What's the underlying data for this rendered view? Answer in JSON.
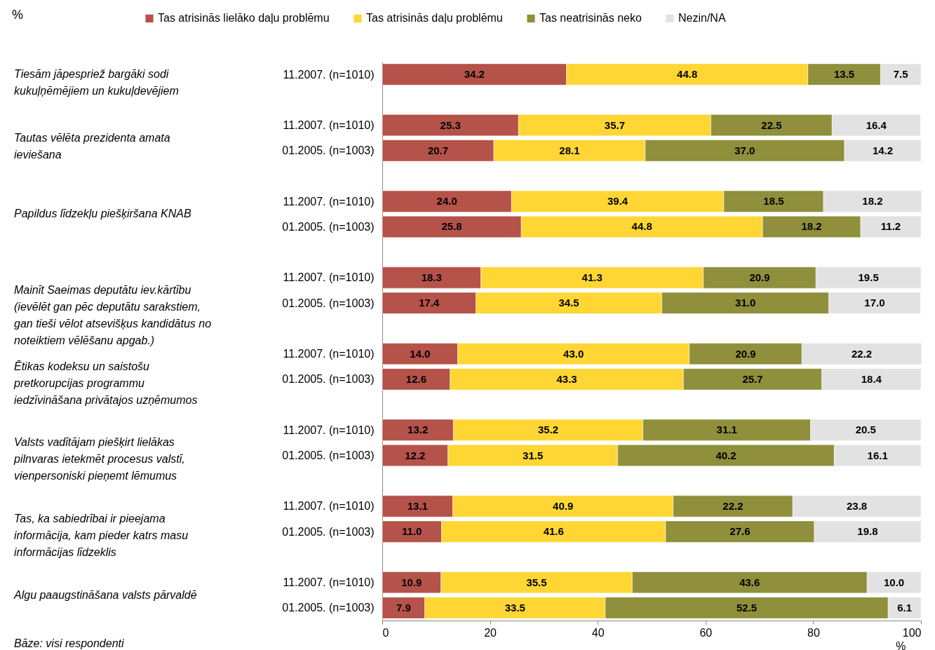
{
  "chart_data": {
    "type": "bar",
    "orientation": "horizontal",
    "stacked": true,
    "xlabel": "%",
    "categories": [
      "11.2007. (n=1010)",
      null,
      "11.2007. (n=1010)",
      "01.2005. (n=1003)",
      null,
      "11.2007. (n=1010)",
      "01.2005. (n=1003)",
      null,
      "11.2007. (n=1010)",
      "01.2005. (n=1003)",
      null,
      "11.2007. (n=1010)",
      "01.2005. (n=1003)",
      null,
      "11.2007. (n=1010)",
      "01.2005. (n=1003)",
      null,
      "11.2007. (n=1010)",
      "01.2005. (n=1003)",
      null,
      "11.2007. (n=1010)",
      "01.2005. (n=1003)"
    ],
    "series": [
      {
        "name": "Tas atrisinās lielāko daļu problēmu",
        "color": "#b5524a",
        "values": [
          34.2,
          null,
          25.3,
          20.7,
          null,
          24.0,
          25.8,
          null,
          18.3,
          17.4,
          null,
          14.0,
          12.6,
          null,
          13.2,
          12.2,
          null,
          13.1,
          11.0,
          null,
          10.9,
          7.9
        ],
        "value_labels": [
          "34.2",
          null,
          "25.3",
          "20.7",
          null,
          "24.0",
          "25.8",
          null,
          "18.3",
          "17.4",
          null,
          "14.0",
          "12.6",
          null,
          "13.2",
          "12.2",
          null,
          "13.1",
          "11.0",
          null,
          "10.9",
          "7.9"
        ]
      },
      {
        "name": "Tas atrisinās daļu problēmu",
        "color": "#ffd633",
        "values": [
          44.8,
          null,
          35.7,
          28.1,
          null,
          39.4,
          44.8,
          null,
          41.3,
          34.5,
          null,
          43.0,
          43.3,
          null,
          35.2,
          31.5,
          null,
          40.9,
          41.6,
          null,
          35.5,
          33.5
        ],
        "value_labels": [
          "44.8",
          null,
          "35.7",
          "28.1",
          null,
          "39.4",
          "44.8",
          null,
          "41.3",
          "34.5",
          null,
          "43.0",
          "43.3",
          null,
          "35.2",
          "31.5",
          null,
          "40.9",
          "41.6",
          null,
          "35.5",
          "33.5"
        ]
      },
      {
        "name": "Tas neatrisinās neko",
        "color": "#8f8f3c",
        "values": [
          13.5,
          null,
          22.5,
          37.0,
          null,
          18.5,
          18.2,
          null,
          20.9,
          31.0,
          null,
          20.9,
          25.7,
          null,
          31.1,
          40.2,
          null,
          22.2,
          27.6,
          null,
          43.6,
          52.5
        ],
        "value_labels": [
          "13.5",
          null,
          "22.5",
          "37.0",
          null,
          "18.5",
          "18.2",
          null,
          "20.9",
          "31.0",
          null,
          "20.9",
          "25.7",
          null,
          "31.1",
          "40.2",
          null,
          "22.2",
          "27.6",
          null,
          "43.6",
          "52.5"
        ]
      },
      {
        "name": "Nezin/NA",
        "color": "#e2e2e2",
        "values": [
          7.5,
          null,
          16.4,
          14.2,
          null,
          18.2,
          11.2,
          null,
          19.5,
          17.0,
          null,
          22.2,
          18.4,
          null,
          20.5,
          16.1,
          null,
          23.8,
          19.8,
          null,
          10.0,
          6.1
        ],
        "value_labels": [
          "7.5",
          null,
          "16.4",
          "14.2",
          null,
          "18.2",
          "11.2",
          null,
          "19.5",
          "17.0",
          null,
          "22.2",
          "18.4",
          null,
          "20.5",
          "16.1",
          null,
          "23.8",
          "19.8",
          null,
          "10.0",
          "6.1"
        ]
      }
    ],
    "xlim": [
      0,
      100
    ],
    "xticks": [
      0,
      20,
      40,
      60,
      80,
      100
    ],
    "grid": false,
    "legend": "top",
    "annotations": [
      "Tiesām jāpespriež bargāki sodi\nkukuļņēmējiem un kukuļdevējiem",
      "Tautas vēlēta prezidenta amata\nieviešana",
      "Papildus līdzekļu piešķiršana KNAB",
      "Mainīt Saeimas deputātu iev.kārtību\n(ievēlēt gan pēc deputātu sarakstiem,\ngan tieši vēlot atsevišķus kandidātus no\nnoteiktiem vēlēšanu apgab.)",
      "Ētikas kodeksu un saistošu\npretkorupcijas programmu\niedzīvināšana privātajos uzņēmumos",
      "Valsts vadītājam piešķirt lielākas\npilnvaras ietekmēt procesus valstī,\nvienpersoniski pieņemt lēmumus",
      "Tas, ka sabiedrībai ir pieejama\ninformācija, kam pieder katrs masu\ninformācijas līdzeklis",
      "Algu paaugstināšana valsts pārvaldē",
      "%",
      "Bāze: visi respondenti"
    ]
  }
}
